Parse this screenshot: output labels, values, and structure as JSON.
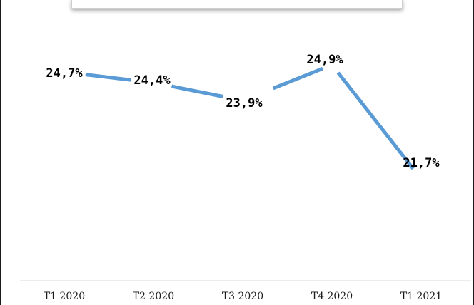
{
  "chart_data": {
    "type": "line",
    "title": "",
    "xlabel": "",
    "ylabel": "",
    "categories": [
      "T1 2020",
      "T2 2020",
      "T3 2020",
      "T4 2020",
      "T1 2021"
    ],
    "series": [
      {
        "values": [
          24.7,
          24.4,
          23.9,
          24.9,
          21.7
        ],
        "labels": [
          "24,7%",
          "24,4%",
          "23,9%",
          "24,9%",
          "21,7%"
        ],
        "color": "#5b9bd5"
      }
    ],
    "grid": false,
    "legend": "none"
  }
}
